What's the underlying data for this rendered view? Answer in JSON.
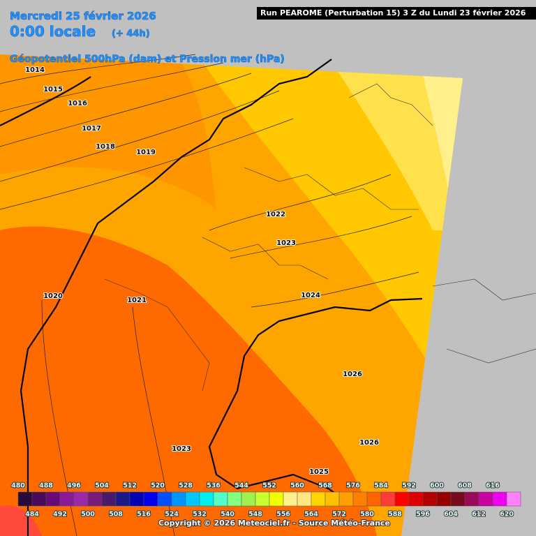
{
  "header": {
    "date": "Mercredi 25 février 2026",
    "time": "0:00 locale",
    "lead": "(+ 44h)",
    "parameter": "Géopotentiel 500hPa (dam) et Pression mer (hPa)",
    "run": "Run PEAROME (Perturbation 15) 3 Z du Lundi 23 février 2026"
  },
  "isobar_labels": [
    "1014",
    "1015",
    "1016",
    "1017",
    "1018",
    "1019",
    "1022",
    "1023",
    "1024",
    "1020",
    "1021",
    "1026",
    "1026",
    "1023",
    "1025"
  ],
  "colorbar": {
    "top_labels": [
      "480",
      "488",
      "496",
      "504",
      "512",
      "520",
      "528",
      "536",
      "544",
      "552",
      "560",
      "568",
      "576",
      "584",
      "592",
      "600",
      "608",
      "616"
    ],
    "bottom_labels": [
      "484",
      "492",
      "500",
      "508",
      "516",
      "524",
      "532",
      "540",
      "548",
      "556",
      "564",
      "572",
      "580",
      "588",
      "596",
      "604",
      "612",
      "620"
    ]
  },
  "footer": {
    "copyright": "Copyright © 2026 Meteociel.fr - Source Météo-France"
  }
}
